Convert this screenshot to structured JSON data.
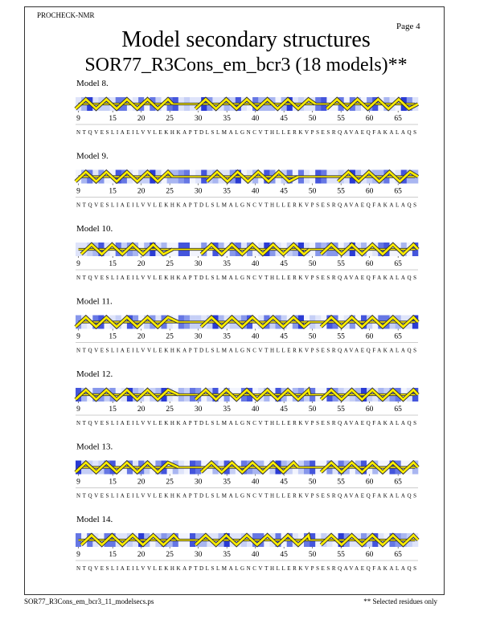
{
  "header": {
    "program": "PROCHECK-NMR",
    "page": "Page  4",
    "title": "Model secondary structures",
    "subtitle": "SOR77_R3Cons_em_bcr3 (18 models)**"
  },
  "residue_ticks": [
    9,
    15,
    20,
    25,
    30,
    35,
    40,
    45,
    50,
    55,
    60,
    65
  ],
  "residue_range": [
    9,
    68
  ],
  "sequence": "NTQVESLIAEILVVLEKHKAPTDLSLMALGNCVTHLLERKVPSESRQAVAEQFAKALAQS",
  "models": [
    {
      "label": "Model  8.",
      "helices": [
        [
          9,
          25
        ],
        [
          30,
          50
        ],
        [
          53,
          68
        ]
      ]
    },
    {
      "label": "Model  9.",
      "helices": [
        [
          9,
          25
        ],
        [
          32,
          47
        ],
        [
          55,
          68
        ]
      ]
    },
    {
      "label": "Model 10.",
      "helices": [
        [
          10,
          25
        ],
        [
          31,
          49
        ],
        [
          52,
          68
        ]
      ]
    },
    {
      "label": "Model 11.",
      "helices": [
        [
          9,
          26
        ],
        [
          31,
          49
        ],
        [
          52,
          68
        ]
      ]
    },
    {
      "label": "Model 12.",
      "helices": [
        [
          9,
          26
        ],
        [
          30,
          49
        ],
        [
          52,
          68
        ]
      ]
    },
    {
      "label": "Model 13.",
      "helices": [
        [
          9,
          26
        ],
        [
          31,
          47
        ],
        [
          52,
          68
        ]
      ]
    },
    {
      "label": "Model 14.",
      "helices": [
        [
          10,
          26
        ],
        [
          30,
          49
        ],
        [
          52,
          68
        ]
      ]
    }
  ],
  "footer": {
    "file": "SOR77_R3Cons_em_bcr3_11_modelsecs.ps",
    "note": "** Selected residues only"
  }
}
